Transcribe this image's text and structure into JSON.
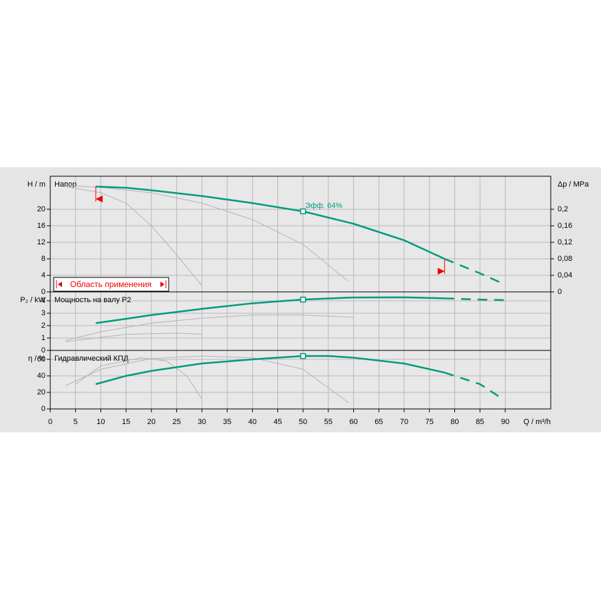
{
  "chart_data": [
    {
      "type": "line",
      "title": "Напор",
      "ylabel": "H / m",
      "y2label": "Δp / MPa",
      "xlim": [
        0,
        99
      ],
      "xticks": [
        0,
        5,
        10,
        15,
        20,
        25,
        30,
        35,
        40,
        45,
        50,
        55,
        60,
        65,
        70,
        75,
        80,
        85,
        90
      ],
      "ylim": [
        0,
        28
      ],
      "yticks": [
        0,
        4,
        8,
        12,
        16,
        20
      ],
      "y2lim": [
        0,
        0.28
      ],
      "y2ticks": [
        0,
        {
          "value": 0.04,
          "label": "0,04"
        },
        {
          "value": 0.08,
          "label": "0,08"
        },
        {
          "value": 0.12,
          "label": "0,12"
        },
        {
          "value": 0.16,
          "label": "0,16"
        },
        {
          "value": 0.2,
          "label": "0,2"
        }
      ],
      "grid": true,
      "series": [
        {
          "color": "#b4b4b4",
          "x": [
            3,
            10,
            20,
            30,
            40,
            50,
            59
          ],
          "values": [
            25.8,
            25.3,
            24,
            21.5,
            17.5,
            11.5,
            2.5
          ]
        },
        {
          "color": "#b4b4b4",
          "x": [
            3,
            10,
            15,
            20,
            25,
            30
          ],
          "values": [
            25.5,
            24,
            21.5,
            16,
            9,
            1.5
          ]
        },
        {
          "color": "#009b7d",
          "x": [
            9,
            15,
            20,
            30,
            40,
            50,
            60,
            70,
            78
          ],
          "values": [
            25.5,
            25.2,
            24.6,
            23.2,
            21.5,
            19.5,
            16.5,
            12.5,
            8
          ]
        },
        {
          "color": "#009b7d",
          "dash": true,
          "x": [
            78,
            80,
            85,
            89
          ],
          "values": [
            8,
            7,
            4.5,
            2.3
          ]
        }
      ],
      "op_point": {
        "x": 50,
        "y": 19.5,
        "label": "Эфф.  64%"
      },
      "range": [
        9,
        78
      ],
      "range_label": "Область применения"
    },
    {
      "type": "line",
      "title": "Мощность на валу P2",
      "ylabel": "P₂ / kW",
      "xlim": [
        0,
        99
      ],
      "xticks": [
        0,
        5,
        10,
        15,
        20,
        25,
        30,
        35,
        40,
        45,
        50,
        55,
        60,
        65,
        70,
        75,
        80,
        85,
        90
      ],
      "ylim": [
        0,
        4.72
      ],
      "yticks": [
        0,
        1,
        2,
        3,
        4
      ],
      "grid": true,
      "series": [
        {
          "color": "#b4b4b4",
          "x": [
            3,
            10,
            20,
            30,
            40,
            50,
            60
          ],
          "values": [
            0.8,
            1.5,
            2.2,
            2.6,
            2.85,
            2.85,
            2.67
          ]
        },
        {
          "color": "#b4b4b4",
          "x": [
            3,
            15,
            25,
            30
          ],
          "values": [
            0.7,
            1.3,
            1.4,
            1.3
          ]
        },
        {
          "color": "#009b7d",
          "x": [
            9,
            15,
            20,
            30,
            40,
            50,
            60,
            70,
            78
          ],
          "values": [
            2.2,
            2.55,
            2.85,
            3.35,
            3.8,
            4.1,
            4.27,
            4.28,
            4.2
          ]
        },
        {
          "color": "#009b7d",
          "dash": true,
          "x": [
            78,
            85,
            90
          ],
          "values": [
            4.2,
            4.1,
            4.05
          ]
        }
      ],
      "op_point": {
        "x": 50,
        "y": 4.1
      }
    },
    {
      "type": "line",
      "title": "Гидравлический КПД",
      "ylabel": "η / %",
      "xlabel": "Q / m³/h",
      "xlim": [
        0,
        99
      ],
      "xticks": [
        0,
        5,
        10,
        15,
        20,
        25,
        30,
        35,
        40,
        45,
        50,
        55,
        60,
        65,
        70,
        75,
        80,
        85,
        90
      ],
      "ylim": [
        0,
        70.8
      ],
      "yticks": [
        0,
        20,
        40,
        60
      ],
      "grid": true,
      "series": [
        {
          "color": "#b4b4b4",
          "x": [
            3,
            10,
            20,
            30,
            40,
            50,
            59
          ],
          "values": [
            28,
            48,
            61,
            64,
            62,
            48,
            7.5
          ]
        },
        {
          "color": "#b4b4b4",
          "x": [
            5,
            10,
            18,
            23,
            27,
            30
          ],
          "values": [
            30,
            52,
            62,
            58,
            40,
            12
          ]
        },
        {
          "color": "#009b7d",
          "x": [
            9,
            15,
            20,
            30,
            40,
            50,
            55,
            60,
            70,
            78
          ],
          "values": [
            30,
            40,
            46,
            55,
            60,
            64,
            64,
            62,
            55,
            44
          ]
        },
        {
          "color": "#009b7d",
          "dash": true,
          "x": [
            78,
            85,
            89
          ],
          "values": [
            44,
            30,
            14
          ]
        }
      ],
      "op_point": {
        "x": 50,
        "y": 64
      }
    }
  ]
}
